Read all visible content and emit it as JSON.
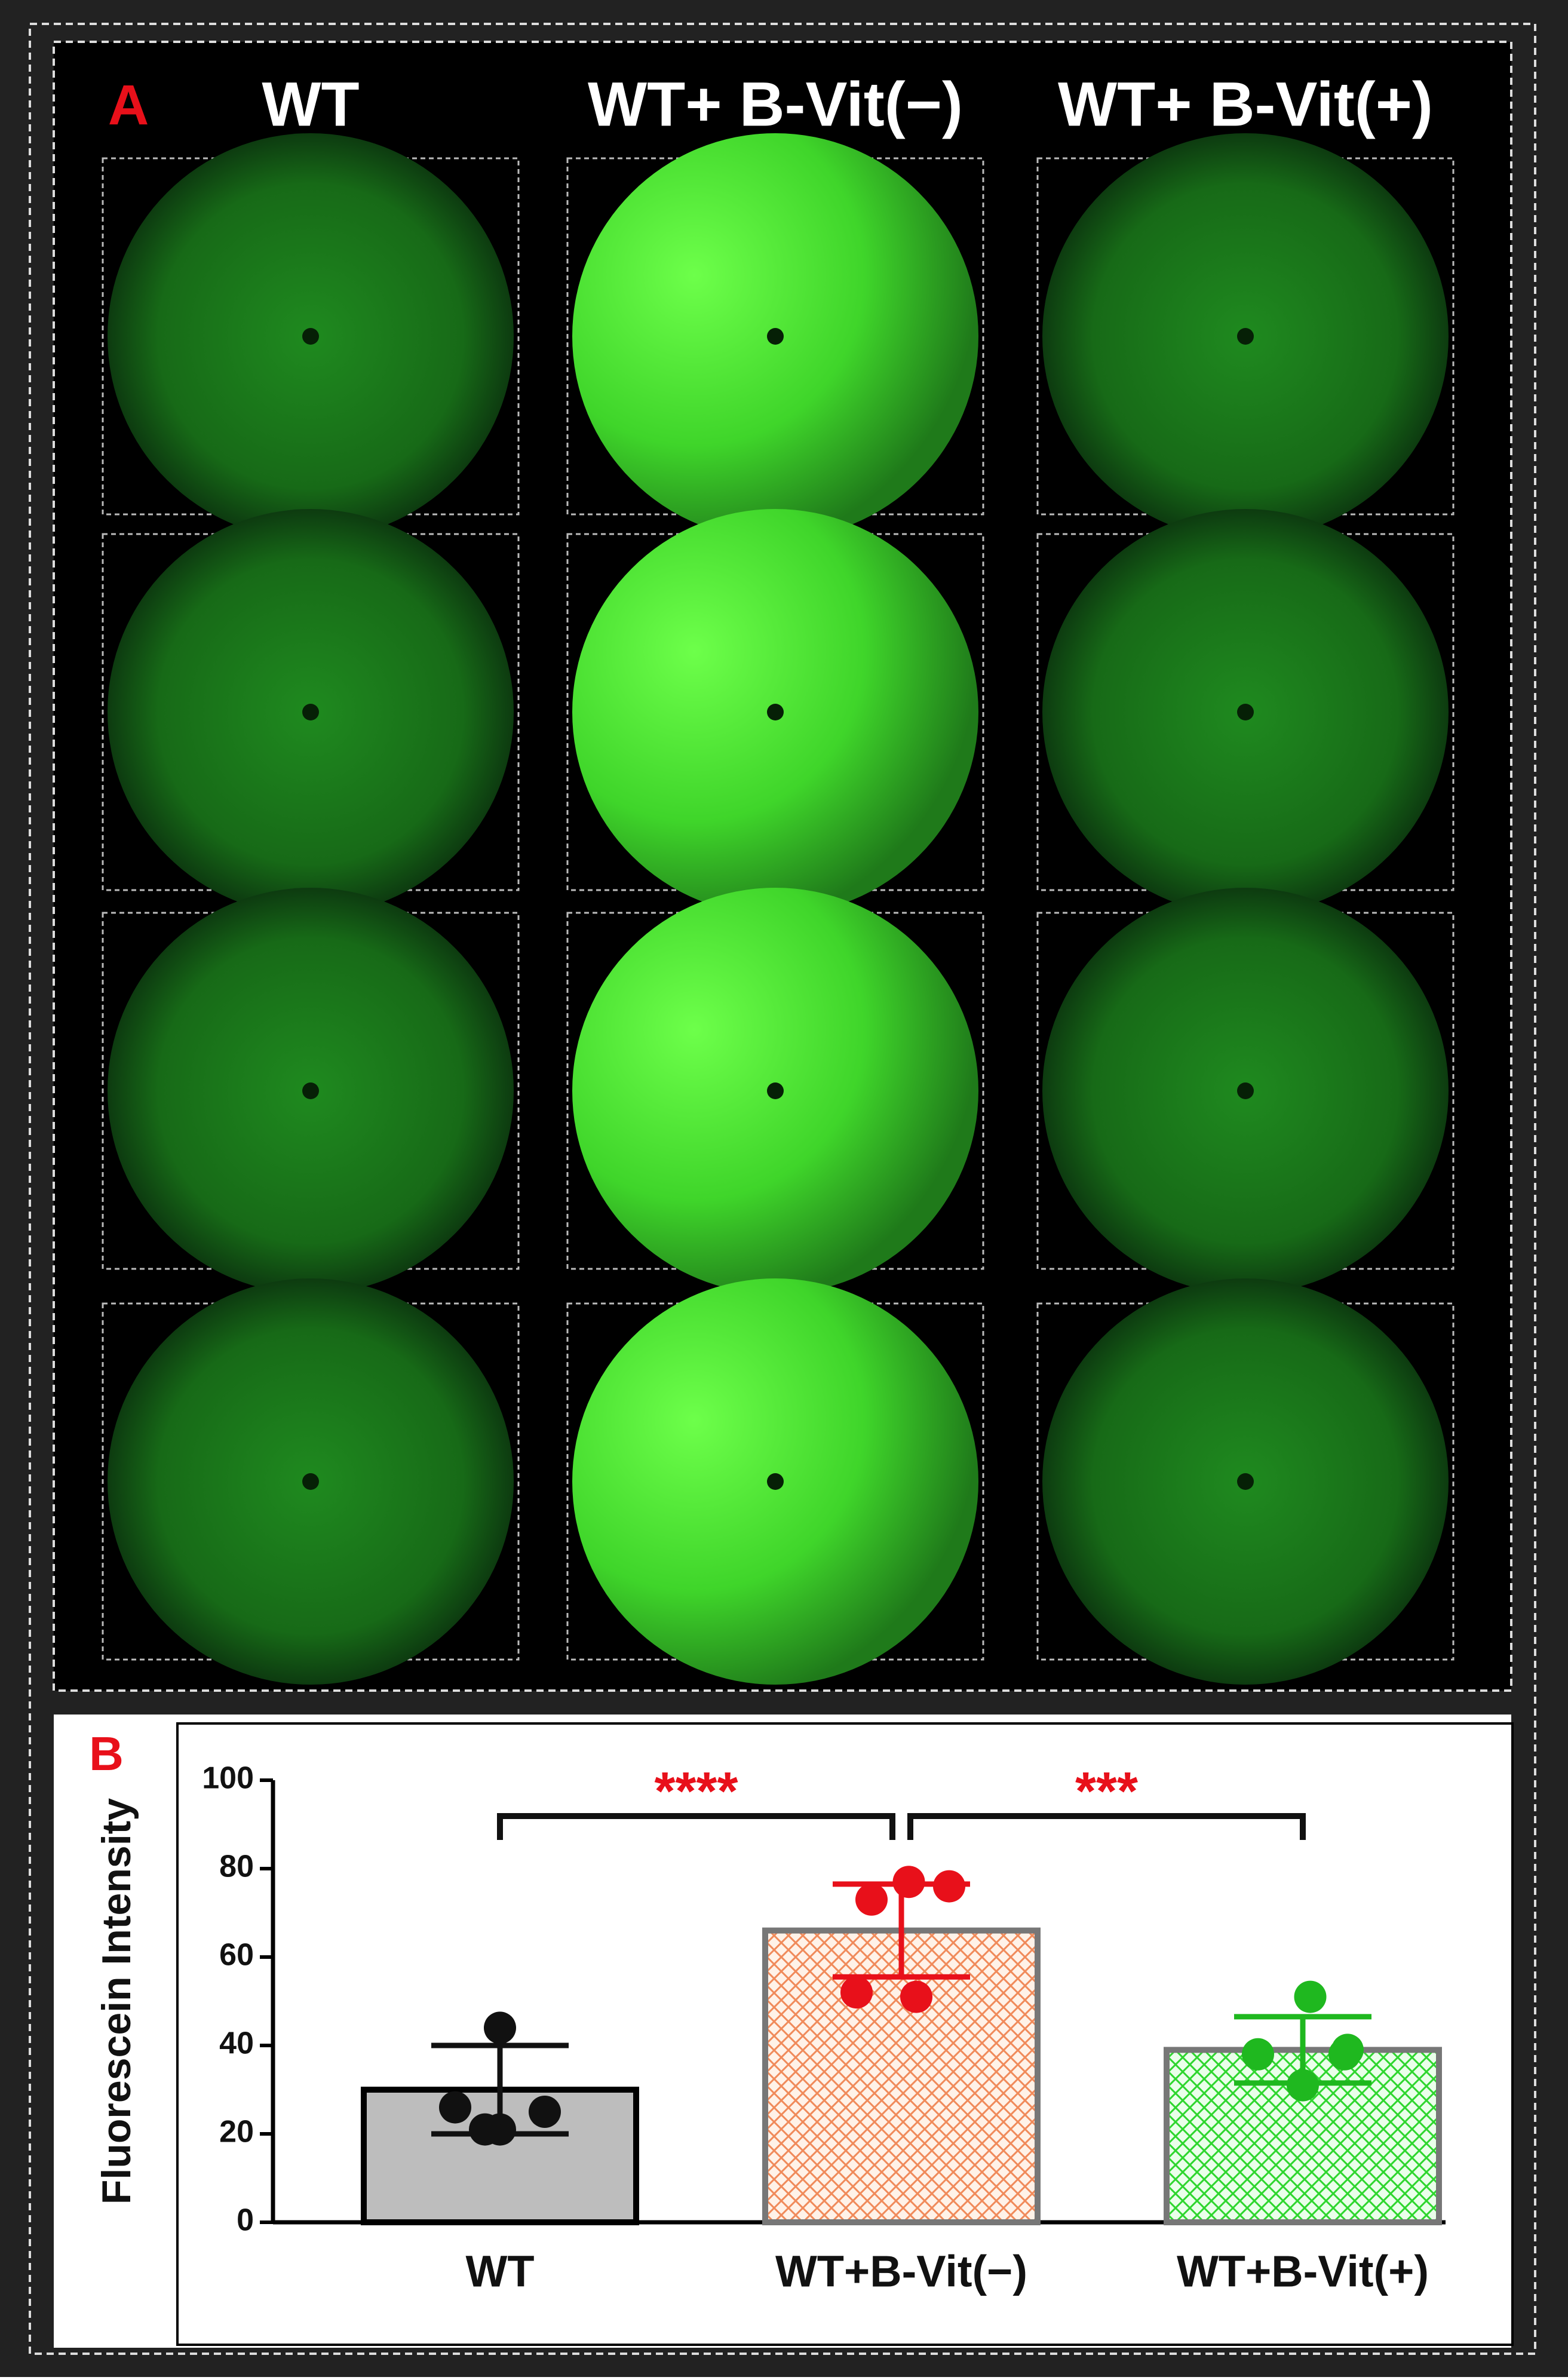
{
  "panel_a": {
    "label": "A",
    "columns": [
      "WT",
      "WT+ B-Vit(−)",
      "WT+ B-Vit(+)"
    ]
  },
  "panel_b": {
    "label": "B"
  },
  "chart_data": {
    "type": "bar",
    "ylabel": "Fluorescein Intensity",
    "categories": [
      "WT",
      "WT+B-Vit(−)",
      "WT+B-Vit(+)"
    ],
    "values": [
      30,
      66,
      39
    ],
    "errors": [
      10,
      10.5,
      7.5
    ],
    "points": [
      [
        44,
        26,
        21,
        25,
        21
      ],
      [
        77,
        76,
        73,
        52,
        51
      ],
      [
        51,
        38,
        39,
        38,
        31
      ]
    ],
    "colors": [
      "#bdbdbd",
      "#f59a6a",
      "#33dd33"
    ],
    "point_colors": [
      "#111111",
      "#e8101a",
      "#1fb81f"
    ],
    "annotations": [
      "****",
      "***"
    ],
    "ylim": [
      0,
      100
    ],
    "yticks": [
      0,
      20,
      40,
      60,
      80,
      100
    ]
  }
}
